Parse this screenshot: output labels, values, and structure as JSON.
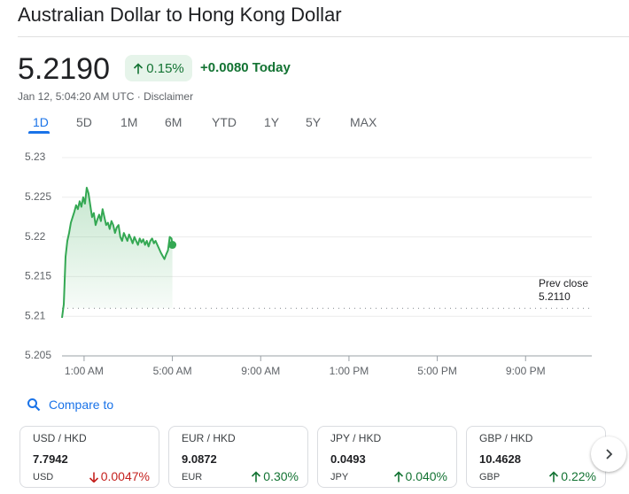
{
  "header": {
    "title": "Australian Dollar to Hong Kong Dollar",
    "price": "5.2190",
    "change_pct": "0.15%",
    "change_abs": "+0.0080 Today",
    "timestamp": "Jan 12, 5:04:20 AM UTC · Disclaimer"
  },
  "tabs": [
    "1D",
    "5D",
    "1M",
    "6M",
    "YTD",
    "1Y",
    "5Y",
    "MAX"
  ],
  "chart_data": {
    "type": "line",
    "color": "#34a853",
    "x": [
      0,
      0.08,
      0.16,
      0.24,
      0.32,
      0.4,
      0.48,
      0.56,
      0.64,
      0.72,
      0.8,
      0.88,
      0.96,
      1.04,
      1.12,
      1.2,
      1.28,
      1.36,
      1.44,
      1.52,
      1.6,
      1.68,
      1.76,
      1.84,
      1.92,
      2.0,
      2.08,
      2.16,
      2.24,
      2.32,
      2.4,
      2.48,
      2.56,
      2.64,
      2.72,
      2.8,
      2.88,
      2.96,
      3.04,
      3.12,
      3.2,
      3.28,
      3.36,
      3.44,
      3.52,
      3.6,
      3.68,
      3.76,
      3.84,
      3.92,
      4.0,
      4.08,
      4.16,
      4.24,
      4.32,
      4.4,
      4.48,
      4.56,
      4.64,
      4.72,
      4.8,
      4.88,
      4.96,
      5.0
    ],
    "values": [
      5.2098,
      5.2115,
      5.2175,
      5.2195,
      5.2205,
      5.2218,
      5.2225,
      5.2232,
      5.224,
      5.2235,
      5.2245,
      5.2238,
      5.225,
      5.2242,
      5.2262,
      5.2255,
      5.224,
      5.2225,
      5.223,
      5.2215,
      5.2222,
      5.2228,
      5.222,
      5.2235,
      5.2225,
      5.2215,
      5.2218,
      5.221,
      5.222,
      5.2215,
      5.2205,
      5.2212,
      5.2215,
      5.22,
      5.2195,
      5.2205,
      5.22,
      5.2195,
      5.2203,
      5.2198,
      5.2192,
      5.22,
      5.2195,
      5.219,
      5.2198,
      5.2193,
      5.2197,
      5.219,
      5.2195,
      5.2188,
      5.2195,
      5.2198,
      5.2192,
      5.2195,
      5.219,
      5.2185,
      5.218,
      5.2176,
      5.2172,
      5.2178,
      5.2183,
      5.22,
      5.2198,
      5.219
    ],
    "xlim": [
      0,
      24
    ],
    "xticks": [
      {
        "value": 1,
        "label": "1:00 AM"
      },
      {
        "value": 5,
        "label": "5:00 AM"
      },
      {
        "value": 9,
        "label": "9:00 AM"
      },
      {
        "value": 13,
        "label": "1:00 PM"
      },
      {
        "value": 17,
        "label": "5:00 PM"
      },
      {
        "value": 21,
        "label": "9:00 PM"
      }
    ],
    "ylim": [
      5.205,
      5.23
    ],
    "yticks": [
      5.205,
      5.21,
      5.215,
      5.22,
      5.225,
      5.23
    ],
    "grid": true,
    "prev_close_label": "Prev close",
    "prev_close": {
      "value": 5.211,
      "label": "5.2110"
    }
  },
  "compare": "Compare to",
  "cards": [
    {
      "pair": "USD / HKD",
      "price": "7.7942",
      "code": "USD",
      "change": "0.0047%",
      "direction": "down"
    },
    {
      "pair": "EUR / HKD",
      "price": "9.0872",
      "code": "EUR",
      "change": "0.30%",
      "direction": "up"
    },
    {
      "pair": "JPY / HKD",
      "price": "0.0493",
      "code": "JPY",
      "change": "0.040%",
      "direction": "up"
    },
    {
      "pair": "GBP / HKD",
      "price": "10.4628",
      "code": "GBP",
      "change": "0.22%",
      "direction": "up"
    }
  ]
}
